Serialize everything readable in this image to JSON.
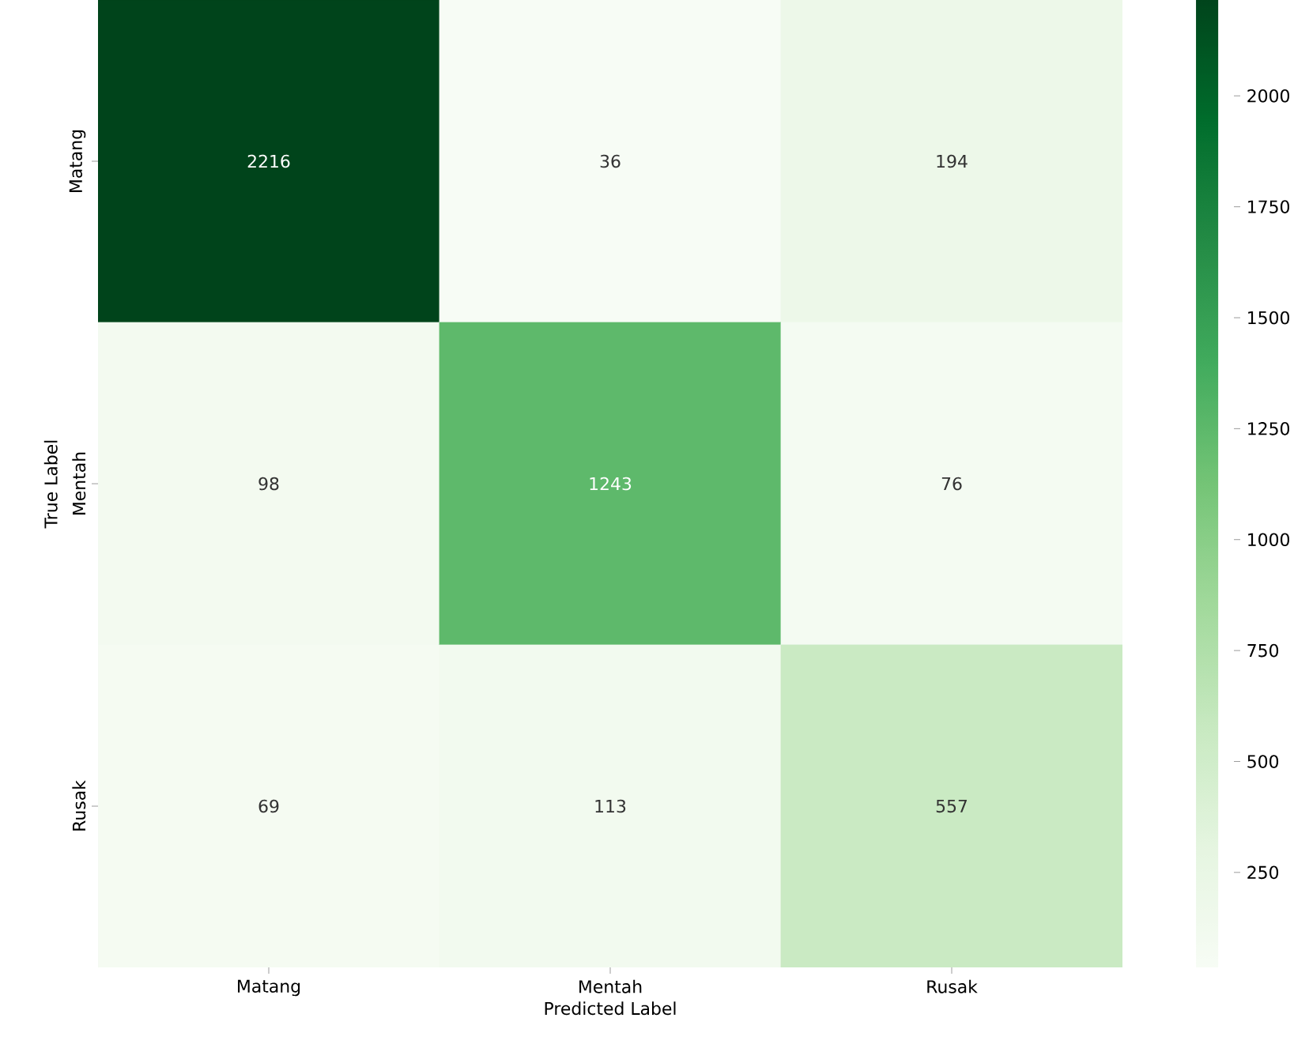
{
  "chart_data": {
    "type": "heatmap",
    "xlabel": "Predicted Label",
    "ylabel": "True Label",
    "categories": [
      "Matang",
      "Mentah",
      "Rusak"
    ],
    "y_categories": [
      "Matang",
      "Mentah",
      "Rusak"
    ],
    "cells": [
      [
        2216,
        36,
        194
      ],
      [
        98,
        1243,
        76
      ],
      [
        69,
        113,
        557
      ]
    ],
    "data_labels": true,
    "clim": [
      36,
      2216
    ],
    "cticks": [
      250,
      500,
      750,
      1000,
      1250,
      1500,
      1750,
      2000
    ]
  }
}
